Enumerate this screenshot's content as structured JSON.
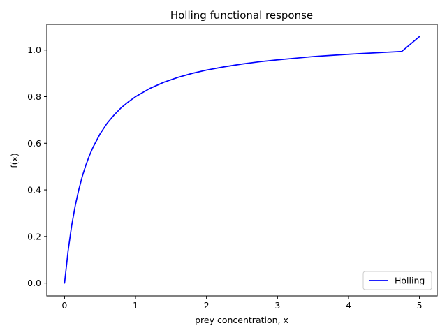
{
  "chart_data": {
    "type": "line",
    "title": "Holling functional response",
    "xlabel": "prey concentration, x",
    "ylabel": "f(x)",
    "xlim": [
      -0.25,
      5.25
    ],
    "ylim": [
      -0.055,
      1.11
    ],
    "xticks": [
      0,
      1,
      2,
      3,
      4,
      5
    ],
    "xtick_labels": [
      "0",
      "1",
      "2",
      "3",
      "4",
      "5"
    ],
    "yticks": [
      0.0,
      0.2,
      0.4,
      0.6,
      0.8,
      1.0
    ],
    "ytick_labels": [
      "0.0",
      "0.2",
      "0.4",
      "0.6",
      "0.8",
      "1.0"
    ],
    "grid": false,
    "legend_position": "lower-right",
    "colors": {
      "series": "#0000ff",
      "axes": "#000000",
      "legend_border": "#cccccc"
    },
    "series": [
      {
        "name": "Holling",
        "color": "#0000ff",
        "x": [
          0,
          0.05,
          0.1,
          0.15,
          0.2,
          0.25,
          0.3,
          0.35,
          0.4,
          0.5,
          0.6,
          0.7,
          0.8,
          0.9,
          1.0,
          1.2,
          1.4,
          1.6,
          1.8,
          2.0,
          2.25,
          2.5,
          2.75,
          3.0,
          3.25,
          3.5,
          3.75,
          4.0,
          4.25,
          4.5,
          4.75,
          5.0
        ],
        "y": [
          0.0,
          0.138,
          0.246,
          0.331,
          0.4,
          0.458,
          0.506,
          0.547,
          0.582,
          0.64,
          0.686,
          0.722,
          0.753,
          0.778,
          0.8,
          0.835,
          0.862,
          0.883,
          0.9,
          0.914,
          0.928,
          0.94,
          0.95,
          0.958,
          0.965,
          0.972,
          0.977,
          0.982,
          0.986,
          0.99,
          0.994,
          1.058
        ]
      }
    ]
  }
}
